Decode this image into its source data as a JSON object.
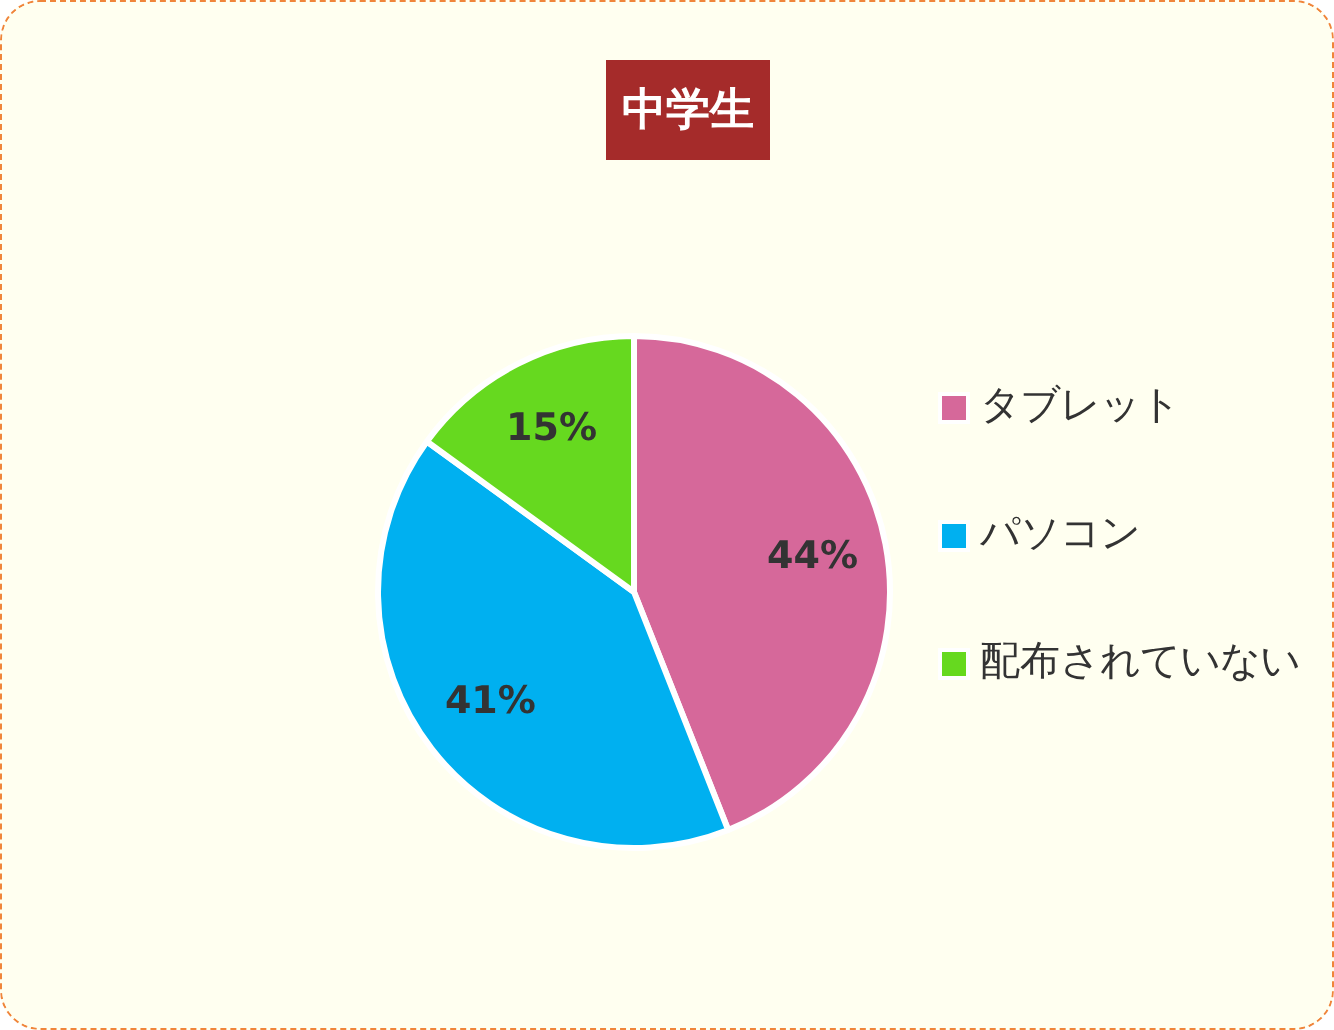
{
  "chart_data": {
    "type": "pie",
    "title": "中学生",
    "categories": [
      "タブレット",
      "パソコン",
      "配布されていない"
    ],
    "values": [
      44,
      41,
      15
    ],
    "colors": [
      "#d6689a",
      "#00b0f0",
      "#66d91f"
    ],
    "value_labels": [
      "44%",
      "41%",
      "15%"
    ],
    "legend": "right"
  }
}
